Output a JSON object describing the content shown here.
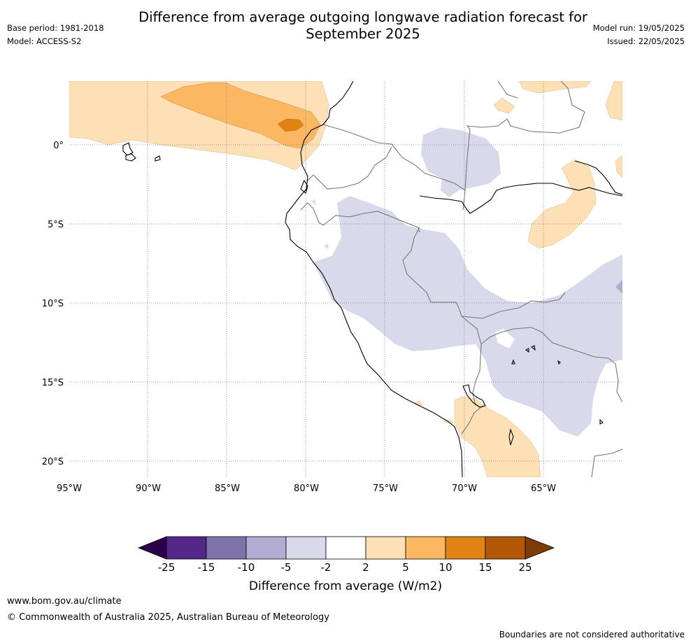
{
  "title": {
    "line1": "Difference from average outgoing longwave radiation forecast for",
    "line2": "September 2025"
  },
  "meta": {
    "base_period": "Base period: 1981-2018",
    "model": "Model: ACCESS-S2",
    "model_run": "Model run: 19/05/2025",
    "issued": "Issued: 22/05/2025"
  },
  "map": {
    "lon_labels": [
      "95°W",
      "90°W",
      "85°W",
      "80°W",
      "75°W",
      "70°W",
      "65°W"
    ],
    "lat_labels": [
      "0°",
      "5°S",
      "10°S",
      "15°S",
      "20°S"
    ],
    "anomaly_colors": {
      "pos_2_5": "#fde0b6",
      "pos_5_10": "#fbb762",
      "pos_10_15": "#e08214",
      "neg_2_5": "#d8daeb",
      "neg_5_10": "#b2abd2"
    }
  },
  "colorbar": {
    "label": "Difference from average (W/m2)",
    "ticks": [
      "-25",
      "-15",
      "-10",
      "-5",
      "-2",
      "2",
      "5",
      "10",
      "15",
      "25"
    ],
    "colors": [
      "#2d004b",
      "#542788",
      "#8073ac",
      "#b2abd2",
      "#d8daeb",
      "#ffffff",
      "#fde0b6",
      "#fbb762",
      "#e08214",
      "#b35806",
      "#7f3b08"
    ]
  },
  "footer": {
    "website": "www.bom.gov.au/climate",
    "copyright": "© Commonwealth of Australia 2025, Australian Bureau of Meteorology",
    "disclaimer": "Boundaries are not considered authoritative"
  }
}
